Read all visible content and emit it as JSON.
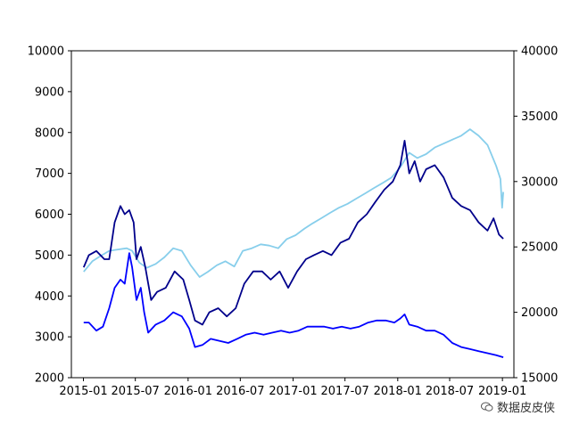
{
  "chart_data": {
    "type": "line",
    "grid": false,
    "legend": "none",
    "x_ticks": [
      "2015-01",
      "2015-07",
      "2016-01",
      "2016-07",
      "2017-01",
      "2017-07",
      "2018-01",
      "2018-07",
      "2019-01"
    ],
    "x_range": [
      "2014-11-20",
      "2019-02-10"
    ],
    "y_left": {
      "range": [
        2000,
        10000
      ],
      "ticks": [
        2000,
        3000,
        4000,
        5000,
        6000,
        7000,
        8000,
        9000,
        10000
      ]
    },
    "y_right": {
      "range": [
        15000,
        40000
      ],
      "ticks": [
        15000,
        20000,
        25000,
        30000,
        35000,
        40000
      ]
    },
    "series": [
      {
        "color": "#87ceeb",
        "axis": "right",
        "points": [
          [
            "2015-01-02",
            23100
          ],
          [
            "2015-02-01",
            23900
          ],
          [
            "2015-03-01",
            24300
          ],
          [
            "2015-04-01",
            24700
          ],
          [
            "2015-05-01",
            24800
          ],
          [
            "2015-06-01",
            24900
          ],
          [
            "2015-06-20",
            24700
          ],
          [
            "2015-07-15",
            23800
          ],
          [
            "2015-08-10",
            23400
          ],
          [
            "2015-09-10",
            23700
          ],
          [
            "2015-10-10",
            24200
          ],
          [
            "2015-11-10",
            24900
          ],
          [
            "2015-12-10",
            24700
          ],
          [
            "2016-01-10",
            23600
          ],
          [
            "2016-02-10",
            22700
          ],
          [
            "2016-03-10",
            23100
          ],
          [
            "2016-04-10",
            23600
          ],
          [
            "2016-05-10",
            23900
          ],
          [
            "2016-06-10",
            23500
          ],
          [
            "2016-07-10",
            24700
          ],
          [
            "2016-08-10",
            24900
          ],
          [
            "2016-09-10",
            25200
          ],
          [
            "2016-10-10",
            25100
          ],
          [
            "2016-11-10",
            24900
          ],
          [
            "2016-12-10",
            25600
          ],
          [
            "2017-01-10",
            25900
          ],
          [
            "2017-02-10",
            26400
          ],
          [
            "2017-03-10",
            26800
          ],
          [
            "2017-04-10",
            27200
          ],
          [
            "2017-05-10",
            27600
          ],
          [
            "2017-06-10",
            28000
          ],
          [
            "2017-07-10",
            28300
          ],
          [
            "2017-08-10",
            28700
          ],
          [
            "2017-09-10",
            29100
          ],
          [
            "2017-10-10",
            29500
          ],
          [
            "2017-11-10",
            29900
          ],
          [
            "2017-12-10",
            30300
          ],
          [
            "2018-01-10",
            31100
          ],
          [
            "2018-02-10",
            32200
          ],
          [
            "2018-03-10",
            31800
          ],
          [
            "2018-04-10",
            32100
          ],
          [
            "2018-05-10",
            32600
          ],
          [
            "2018-06-10",
            32900
          ],
          [
            "2018-07-10",
            33200
          ],
          [
            "2018-08-10",
            33500
          ],
          [
            "2018-09-10",
            34000
          ],
          [
            "2018-10-10",
            33500
          ],
          [
            "2018-11-10",
            32800
          ],
          [
            "2018-12-10",
            31200
          ],
          [
            "2018-12-25",
            30200
          ],
          [
            "2018-12-31",
            28000
          ],
          [
            "2019-01-04",
            29200
          ]
        ]
      },
      {
        "color": "#00008b",
        "axis": "left",
        "points": [
          [
            "2015-01-02",
            4700
          ],
          [
            "2015-01-20",
            5000
          ],
          [
            "2015-02-15",
            5100
          ],
          [
            "2015-03-15",
            4900
          ],
          [
            "2015-04-01",
            4900
          ],
          [
            "2015-04-20",
            5800
          ],
          [
            "2015-05-10",
            6200
          ],
          [
            "2015-05-25",
            6000
          ],
          [
            "2015-06-10",
            6100
          ],
          [
            "2015-06-25",
            5800
          ],
          [
            "2015-07-05",
            4900
          ],
          [
            "2015-07-20",
            5200
          ],
          [
            "2015-08-05",
            4700
          ],
          [
            "2015-08-25",
            3900
          ],
          [
            "2015-09-15",
            4100
          ],
          [
            "2015-10-15",
            4200
          ],
          [
            "2015-11-15",
            4600
          ],
          [
            "2015-12-15",
            4400
          ],
          [
            "2016-01-05",
            3900
          ],
          [
            "2016-01-25",
            3400
          ],
          [
            "2016-02-20",
            3300
          ],
          [
            "2016-03-15",
            3600
          ],
          [
            "2016-04-15",
            3700
          ],
          [
            "2016-05-15",
            3500
          ],
          [
            "2016-06-15",
            3700
          ],
          [
            "2016-07-15",
            4300
          ],
          [
            "2016-08-15",
            4600
          ],
          [
            "2016-09-15",
            4600
          ],
          [
            "2016-10-15",
            4400
          ],
          [
            "2016-11-15",
            4600
          ],
          [
            "2016-12-15",
            4200
          ],
          [
            "2017-01-15",
            4600
          ],
          [
            "2017-02-15",
            4900
          ],
          [
            "2017-03-15",
            5000
          ],
          [
            "2017-04-15",
            5100
          ],
          [
            "2017-05-15",
            5000
          ],
          [
            "2017-06-15",
            5300
          ],
          [
            "2017-07-15",
            5400
          ],
          [
            "2017-08-15",
            5800
          ],
          [
            "2017-09-15",
            6000
          ],
          [
            "2017-10-15",
            6300
          ],
          [
            "2017-11-15",
            6600
          ],
          [
            "2017-12-15",
            6800
          ],
          [
            "2018-01-10",
            7200
          ],
          [
            "2018-01-25",
            7800
          ],
          [
            "2018-02-10",
            7000
          ],
          [
            "2018-03-01",
            7300
          ],
          [
            "2018-03-20",
            6800
          ],
          [
            "2018-04-10",
            7100
          ],
          [
            "2018-05-10",
            7200
          ],
          [
            "2018-06-10",
            6900
          ],
          [
            "2018-07-10",
            6400
          ],
          [
            "2018-08-10",
            6200
          ],
          [
            "2018-09-10",
            6100
          ],
          [
            "2018-10-10",
            5800
          ],
          [
            "2018-11-10",
            5600
          ],
          [
            "2018-12-01",
            5900
          ],
          [
            "2018-12-20",
            5500
          ],
          [
            "2019-01-04",
            5400
          ]
        ]
      },
      {
        "color": "#0000ff",
        "axis": "left",
        "points": [
          [
            "2015-01-02",
            3350
          ],
          [
            "2015-01-20",
            3350
          ],
          [
            "2015-02-15",
            3150
          ],
          [
            "2015-03-10",
            3250
          ],
          [
            "2015-04-01",
            3700
          ],
          [
            "2015-04-20",
            4200
          ],
          [
            "2015-05-10",
            4400
          ],
          [
            "2015-05-25",
            4300
          ],
          [
            "2015-06-10",
            5050
          ],
          [
            "2015-06-20",
            4700
          ],
          [
            "2015-07-05",
            3900
          ],
          [
            "2015-07-20",
            4200
          ],
          [
            "2015-08-01",
            3600
          ],
          [
            "2015-08-15",
            3100
          ],
          [
            "2015-09-10",
            3300
          ],
          [
            "2015-10-10",
            3400
          ],
          [
            "2015-11-10",
            3600
          ],
          [
            "2015-12-10",
            3500
          ],
          [
            "2016-01-05",
            3200
          ],
          [
            "2016-01-25",
            2750
          ],
          [
            "2016-02-20",
            2800
          ],
          [
            "2016-03-20",
            2950
          ],
          [
            "2016-04-20",
            2900
          ],
          [
            "2016-05-20",
            2850
          ],
          [
            "2016-06-20",
            2950
          ],
          [
            "2016-07-20",
            3050
          ],
          [
            "2016-08-20",
            3100
          ],
          [
            "2016-09-20",
            3050
          ],
          [
            "2016-10-20",
            3100
          ],
          [
            "2016-11-20",
            3150
          ],
          [
            "2016-12-20",
            3100
          ],
          [
            "2017-01-20",
            3150
          ],
          [
            "2017-02-20",
            3250
          ],
          [
            "2017-03-20",
            3250
          ],
          [
            "2017-04-20",
            3250
          ],
          [
            "2017-05-20",
            3200
          ],
          [
            "2017-06-20",
            3250
          ],
          [
            "2017-07-20",
            3200
          ],
          [
            "2017-08-20",
            3250
          ],
          [
            "2017-09-20",
            3350
          ],
          [
            "2017-10-20",
            3400
          ],
          [
            "2017-11-20",
            3400
          ],
          [
            "2017-12-20",
            3350
          ],
          [
            "2018-01-10",
            3450
          ],
          [
            "2018-01-25",
            3550
          ],
          [
            "2018-02-10",
            3300
          ],
          [
            "2018-03-10",
            3250
          ],
          [
            "2018-04-10",
            3150
          ],
          [
            "2018-05-10",
            3150
          ],
          [
            "2018-06-10",
            3050
          ],
          [
            "2018-07-10",
            2850
          ],
          [
            "2018-08-10",
            2750
          ],
          [
            "2018-09-10",
            2700
          ],
          [
            "2018-10-10",
            2650
          ],
          [
            "2018-11-10",
            2600
          ],
          [
            "2018-12-10",
            2550
          ],
          [
            "2019-01-04",
            2500
          ]
        ]
      }
    ]
  },
  "watermark": {
    "text": "数据皮皮侠",
    "icon": "wechat-icon"
  }
}
